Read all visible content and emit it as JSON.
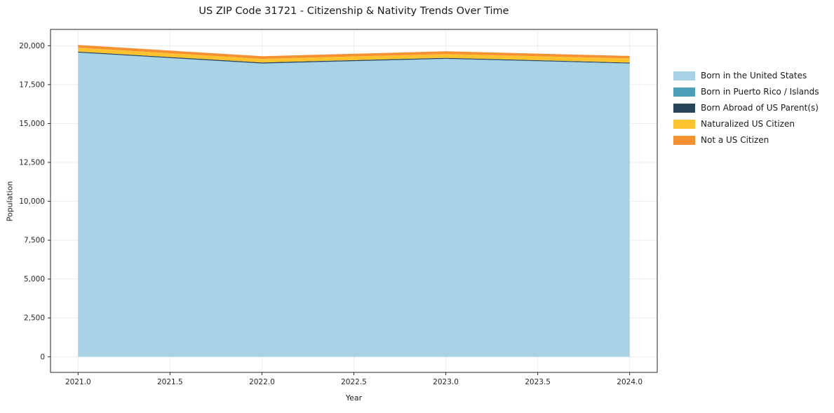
{
  "chart_data": {
    "type": "area",
    "stacked": true,
    "title": "US ZIP Code 31721 - Citizenship & Nativity Trends Over Time",
    "xlabel": "Year",
    "ylabel": "Population",
    "x": [
      2021,
      2022,
      2023,
      2024
    ],
    "series": [
      {
        "name": "Born in the United States",
        "color": "#a8d3e7",
        "values": [
          19550,
          18850,
          19150,
          18850
        ]
      },
      {
        "name": "Born in Puerto Rico / Islands",
        "color": "#4d9fb8",
        "values": [
          15,
          15,
          15,
          15
        ]
      },
      {
        "name": "Born Abroad of US Parent(s)",
        "color": "#28455a",
        "values": [
          60,
          60,
          60,
          50
        ]
      },
      {
        "name": "Naturalized US Citizen",
        "color": "#fdc32e",
        "values": [
          250,
          230,
          240,
          270
        ]
      },
      {
        "name": "Not a US Citizen",
        "color": "#f69132",
        "values": [
          175,
          170,
          175,
          160
        ]
      }
    ],
    "xlim": [
      2020.85,
      2024.15
    ],
    "ylim": [
      -1000,
      21050
    ],
    "xticks": [
      2021.0,
      2021.5,
      2022.0,
      2022.5,
      2023.0,
      2023.5,
      2024.0
    ],
    "yticks": [
      0,
      2500,
      5000,
      7500,
      10000,
      12500,
      15000,
      17500,
      20000
    ],
    "grid": true,
    "legend_position": "right",
    "colors": {
      "grid": "rgba(0,0,0,0.07)",
      "spine": "#262626",
      "tick_text": "#262626"
    }
  }
}
